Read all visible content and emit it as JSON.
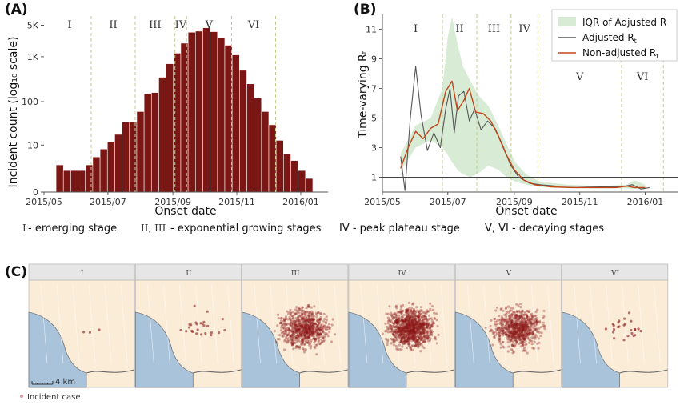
{
  "panel_a": {
    "label": "(A)"
  },
  "panel_b": {
    "label": "(B)"
  },
  "panel_c": {
    "label": "(C)"
  },
  "stage_descriptions": [
    {
      "roman": "I",
      "text": "- emerging stage"
    },
    {
      "roman": "II, III",
      "text": "- exponential growing stages"
    },
    {
      "roman": "",
      "text": "IV - peak plateau stage"
    },
    {
      "roman": "",
      "text": "V, VI - decaying stages"
    }
  ],
  "scale_bar": {
    "label": "4 km"
  },
  "map_legend": {
    "label": "Incident case"
  },
  "facets": [
    "I",
    "II",
    "III",
    "IV",
    "V",
    "VI"
  ],
  "colors": {
    "bar": "#7a1714",
    "adjusted": "#555555",
    "nonadjusted": "#c0461a",
    "iqr": "#d7ebd5",
    "land": "#fbecd8",
    "sea": "#a9c3db",
    "case": "#8b1a1a"
  },
  "chart_data": [
    {
      "type": "bar",
      "xlabel": "Onset date",
      "ylabel": "Incident count (log₁₀ scale)",
      "y_scale": "log10",
      "x_ticks": [
        "2015/05",
        "2015/07",
        "2015/09",
        "2015/11",
        "2016/01"
      ],
      "y_ticks": [
        "0",
        "10",
        "100",
        "1K",
        "5K"
      ],
      "stage_labels": [
        "I",
        "II",
        "III",
        "IV",
        "V",
        "VI"
      ],
      "stage_boundaries": [
        "2015/06/15",
        "2015/07/27",
        "2015/09/03",
        "2015/09/14",
        "2015/10/27",
        "2015/12/08"
      ],
      "bars": [
        {
          "week": "2015/05/16",
          "count": 3
        },
        {
          "week": "2015/05/23",
          "count": 2
        },
        {
          "week": "2015/05/30",
          "count": 2
        },
        {
          "week": "2015/06/06",
          "count": 2
        },
        {
          "week": "2015/06/13",
          "count": 3
        },
        {
          "week": "2015/06/20",
          "count": 5
        },
        {
          "week": "2015/06/27",
          "count": 8
        },
        {
          "week": "2015/07/04",
          "count": 12
        },
        {
          "week": "2015/07/11",
          "count": 18
        },
        {
          "week": "2015/07/18",
          "count": 35
        },
        {
          "week": "2015/07/25",
          "count": 35
        },
        {
          "week": "2015/08/01",
          "count": 60
        },
        {
          "week": "2015/08/08",
          "count": 150
        },
        {
          "week": "2015/08/15",
          "count": 160
        },
        {
          "week": "2015/08/22",
          "count": 350
        },
        {
          "week": "2015/08/29",
          "count": 700
        },
        {
          "week": "2015/09/05",
          "count": 1200
        },
        {
          "week": "2015/09/12",
          "count": 2000
        },
        {
          "week": "2015/09/19",
          "count": 3500
        },
        {
          "week": "2015/09/26",
          "count": 3700
        },
        {
          "week": "2015/10/03",
          "count": 4400
        },
        {
          "week": "2015/10/10",
          "count": 3600
        },
        {
          "week": "2015/10/17",
          "count": 2600
        },
        {
          "week": "2015/10/24",
          "count": 1800
        },
        {
          "week": "2015/10/31",
          "count": 1100
        },
        {
          "week": "2015/11/07",
          "count": 500
        },
        {
          "week": "2015/11/14",
          "count": 250
        },
        {
          "week": "2015/11/21",
          "count": 120
        },
        {
          "week": "2015/11/28",
          "count": 60
        },
        {
          "week": "2015/12/05",
          "count": 30
        },
        {
          "week": "2015/12/12",
          "count": 13
        },
        {
          "week": "2015/12/19",
          "count": 6
        },
        {
          "week": "2015/12/26",
          "count": 4
        },
        {
          "week": "2016/01/02",
          "count": 2
        },
        {
          "week": "2016/01/09",
          "count": 1
        }
      ]
    },
    {
      "type": "line",
      "xlabel": "Onset date",
      "ylabel": "Time-varying Rₜ",
      "ylim": [
        0,
        12
      ],
      "reference_line": 1,
      "x_ticks": [
        "2015/05",
        "2015/07",
        "2015/09",
        "2015/11",
        "2016/01"
      ],
      "y_ticks": [
        1,
        3,
        5,
        7,
        9,
        11
      ],
      "stage_labels": [
        "I",
        "II",
        "III",
        "IV",
        "V",
        "VI"
      ],
      "stage_boundaries": [
        "2015/06/26",
        "2015/07/28",
        "2015/08/29",
        "2015/09/23",
        "2015/12/10",
        "2016/01/18"
      ],
      "legend": {
        "position": "top-right",
        "items": [
          {
            "label": "IQR of Adjusted R",
            "kind": "band"
          },
          {
            "label": "Adjusted R",
            "sub": "t",
            "kind": "adjusted"
          },
          {
            "label": "Non-adjusted R",
            "sub": "t",
            "kind": "nonadjusted"
          }
        ]
      },
      "series": [
        {
          "key": "adjusted",
          "x": [
            "2015/05/18",
            "2015/05/22",
            "2015/05/27",
            "2015/06/01",
            "2015/06/06",
            "2015/06/12",
            "2015/06/18",
            "2015/06/24",
            "2015/06/29",
            "2015/07/03",
            "2015/07/07",
            "2015/07/11",
            "2015/07/16",
            "2015/07/21",
            "2015/07/26",
            "2015/08/01",
            "2015/08/07",
            "2015/08/14",
            "2015/08/21",
            "2015/08/28",
            "2015/09/05",
            "2015/09/15",
            "2015/09/25",
            "2015/10/10",
            "2015/10/30",
            "2015/11/20",
            "2015/12/10",
            "2015/12/20",
            "2015/12/28",
            "2016/01/05"
          ],
          "y": [
            2.4,
            0.1,
            5.0,
            8.5,
            5.2,
            2.8,
            4.0,
            3.0,
            5.6,
            7.0,
            4.0,
            6.5,
            6.8,
            4.8,
            5.6,
            4.2,
            4.8,
            4.3,
            3.2,
            1.9,
            1.0,
            0.6,
            0.5,
            0.4,
            0.4,
            0.35,
            0.35,
            0.5,
            0.2,
            0.3
          ]
        },
        {
          "key": "nonadjusted",
          "x": [
            "2015/05/18",
            "2015/05/25",
            "2015/06/01",
            "2015/06/08",
            "2015/06/15",
            "2015/06/22",
            "2015/06/29",
            "2015/07/05",
            "2015/07/10",
            "2015/07/16",
            "2015/07/21",
            "2015/07/27",
            "2015/08/03",
            "2015/08/10",
            "2015/08/17",
            "2015/08/24",
            "2015/09/01",
            "2015/09/10",
            "2015/09/20",
            "2015/10/05",
            "2015/10/25",
            "2015/11/15",
            "2015/12/05",
            "2015/12/15",
            "2015/12/22",
            "2016/01/01"
          ],
          "y": [
            1.6,
            3.0,
            4.1,
            3.6,
            4.3,
            4.6,
            6.8,
            7.5,
            5.5,
            6.2,
            7.0,
            5.4,
            5.3,
            4.8,
            3.8,
            2.6,
            1.5,
            0.8,
            0.5,
            0.35,
            0.3,
            0.3,
            0.3,
            0.4,
            0.3,
            0.3
          ]
        }
      ],
      "iqr_band": {
        "x": [
          "2015/05/18",
          "2015/06/01",
          "2015/06/15",
          "2015/06/26",
          "2015/07/01",
          "2015/07/05",
          "2015/07/10",
          "2015/07/15",
          "2015/07/22",
          "2015/07/30",
          "2015/08/08",
          "2015/08/17",
          "2015/08/25",
          "2015/09/02",
          "2015/09/12",
          "2015/09/25",
          "2015/10/20",
          "2015/11/20",
          "2015/12/15",
          "2015/12/22",
          "2016/01/01"
        ],
        "lo": [
          1.4,
          3.0,
          3.5,
          3.0,
          2.5,
          2.0,
          1.5,
          1.2,
          1.0,
          1.3,
          1.8,
          1.5,
          1.0,
          0.7,
          0.5,
          0.35,
          0.3,
          0.25,
          0.25,
          0.2,
          0.2
        ],
        "hi": [
          2.6,
          4.5,
          5.0,
          7.0,
          10.5,
          11.8,
          10.0,
          8.5,
          7.5,
          6.5,
          5.8,
          4.5,
          3.2,
          2.0,
          1.2,
          0.7,
          0.5,
          0.4,
          0.5,
          0.8,
          0.5
        ]
      }
    }
  ]
}
